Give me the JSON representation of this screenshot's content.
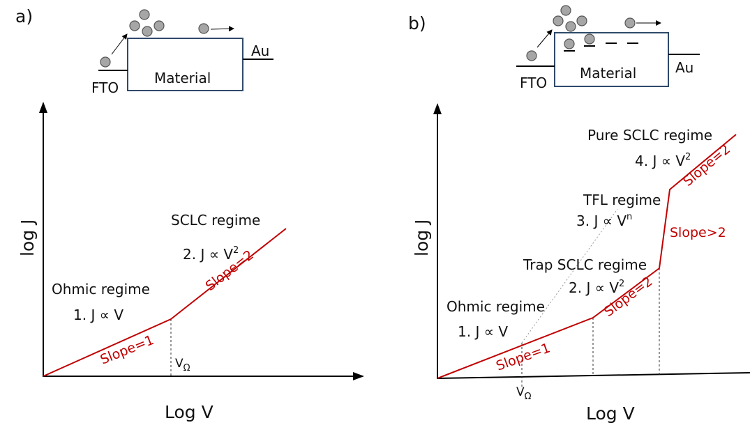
{
  "panels": [
    {
      "label": "a)",
      "device": {
        "material": "Material",
        "left": "FTO",
        "right": "Au"
      },
      "y_axis": "log J",
      "x_axis": "Log V",
      "regimes": [
        {
          "name": "Ohmic regime",
          "law": {
            "text": "1. J ∝ V"
          }
        },
        {
          "name": "SCLC regime",
          "law": {
            "text": "2. J ∝ V",
            "sup": "2"
          }
        }
      ],
      "slopes": [
        "Slope=1",
        "Slope=2"
      ],
      "v_omega": {
        "text": "V",
        "sub": "Ω"
      }
    },
    {
      "label": "b)",
      "device": {
        "material": "Material",
        "left": "FTO",
        "right": "Au"
      },
      "y_axis": "log J",
      "x_axis": "Log V",
      "regimes": [
        {
          "name": "Ohmic regime",
          "law": {
            "text": "1. J ∝ V"
          }
        },
        {
          "name": "Trap SCLC regime",
          "law": {
            "text": "2. J ∝ V",
            "sup": "2"
          }
        },
        {
          "name": "TFL regime",
          "law": {
            "text": "3. J ∝ V",
            "sup": "n"
          }
        },
        {
          "name": "Pure SCLC regime",
          "law": {
            "text": "4. J ∝ V",
            "sup": "2"
          }
        }
      ],
      "slopes": [
        "Slope=1",
        "Slope=2",
        "Slope>2",
        "Slope=2"
      ],
      "v_omega": {
        "text": "V",
        "sub": "Ω"
      }
    }
  ]
}
